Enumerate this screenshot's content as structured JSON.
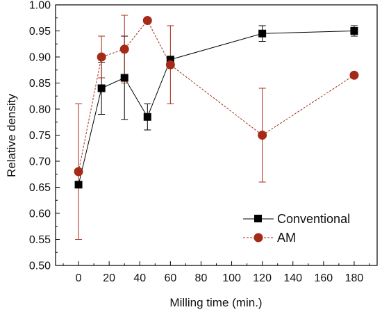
{
  "chart_data": {
    "type": "scatter",
    "xlabel": "Milling time (min.)",
    "ylabel": "Relative density",
    "xlim": [
      -15,
      195
    ],
    "ylim": [
      0.5,
      1.0
    ],
    "xticks": [
      0,
      20,
      40,
      60,
      80,
      100,
      120,
      140,
      160,
      180
    ],
    "yticks": [
      0.5,
      0.55,
      0.6,
      0.65,
      0.7,
      0.75,
      0.8,
      0.85,
      0.9,
      0.95,
      1.0
    ],
    "grid": false,
    "legend_position": "bottom-right",
    "series": [
      {
        "name": "Conventional",
        "marker": "square",
        "line_style": "solid",
        "color": "#000000",
        "x": [
          0,
          15,
          30,
          45,
          60,
          120,
          180
        ],
        "y": [
          0.655,
          0.84,
          0.86,
          0.785,
          0.895,
          0.945,
          0.95
        ],
        "err_low": [
          0.655,
          0.79,
          0.78,
          0.76,
          0.89,
          0.93,
          0.94
        ],
        "err_high": [
          0.655,
          0.89,
          0.94,
          0.81,
          0.9,
          0.96,
          0.96
        ]
      },
      {
        "name": "AM",
        "marker": "circle",
        "line_style": "dashed",
        "color": "#A52A18",
        "x": [
          0,
          15,
          30,
          45,
          60,
          120,
          180
        ],
        "y": [
          0.68,
          0.9,
          0.915,
          0.97,
          0.885,
          0.75,
          0.865
        ],
        "err_low": [
          0.55,
          0.86,
          0.85,
          0.965,
          0.81,
          0.66,
          0.865
        ],
        "err_high": [
          0.81,
          0.94,
          0.98,
          0.975,
          0.96,
          0.84,
          0.865
        ]
      }
    ]
  }
}
